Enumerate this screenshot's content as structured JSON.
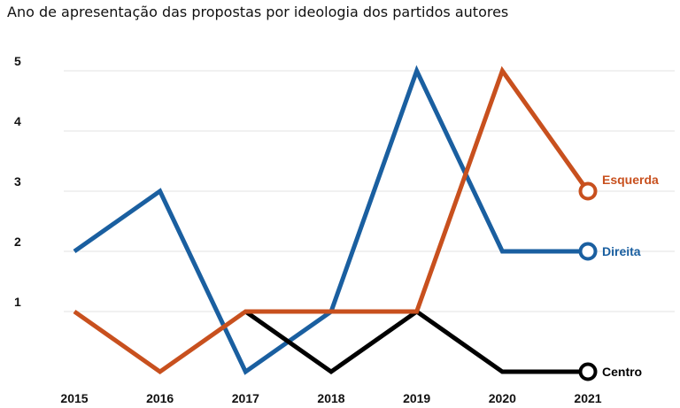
{
  "chart_data": {
    "type": "line",
    "title": "Ano de apresentação das propostas por ideologia dos partidos autores",
    "categories": [
      "2015",
      "2016",
      "2017",
      "2018",
      "2019",
      "2020",
      "2021"
    ],
    "x": [
      2015,
      2016,
      2017,
      2018,
      2019,
      2020,
      2021
    ],
    "yticks": [
      1,
      2,
      3,
      4,
      5
    ],
    "ylim": [
      0,
      5
    ],
    "grid": true,
    "legend": "direct labels at line ends (right)",
    "series": [
      {
        "name": "Direita",
        "color": "#1a5fa0",
        "x": [
          2015,
          2016,
          2017,
          2018,
          2019,
          2020,
          2021
        ],
        "values": [
          2,
          3,
          0,
          1,
          5,
          2,
          2
        ]
      },
      {
        "name": "Centro",
        "color": "#000000",
        "x": [
          2017,
          2018,
          2019,
          2020,
          2021
        ],
        "values": [
          1,
          0,
          1,
          0,
          0
        ]
      },
      {
        "name": "Esquerda",
        "color": "#c8501e",
        "x": [
          2015,
          2016,
          2017,
          2018,
          2019,
          2020,
          2021
        ],
        "values": [
          1,
          0,
          1,
          1,
          1,
          5,
          3
        ]
      }
    ]
  }
}
